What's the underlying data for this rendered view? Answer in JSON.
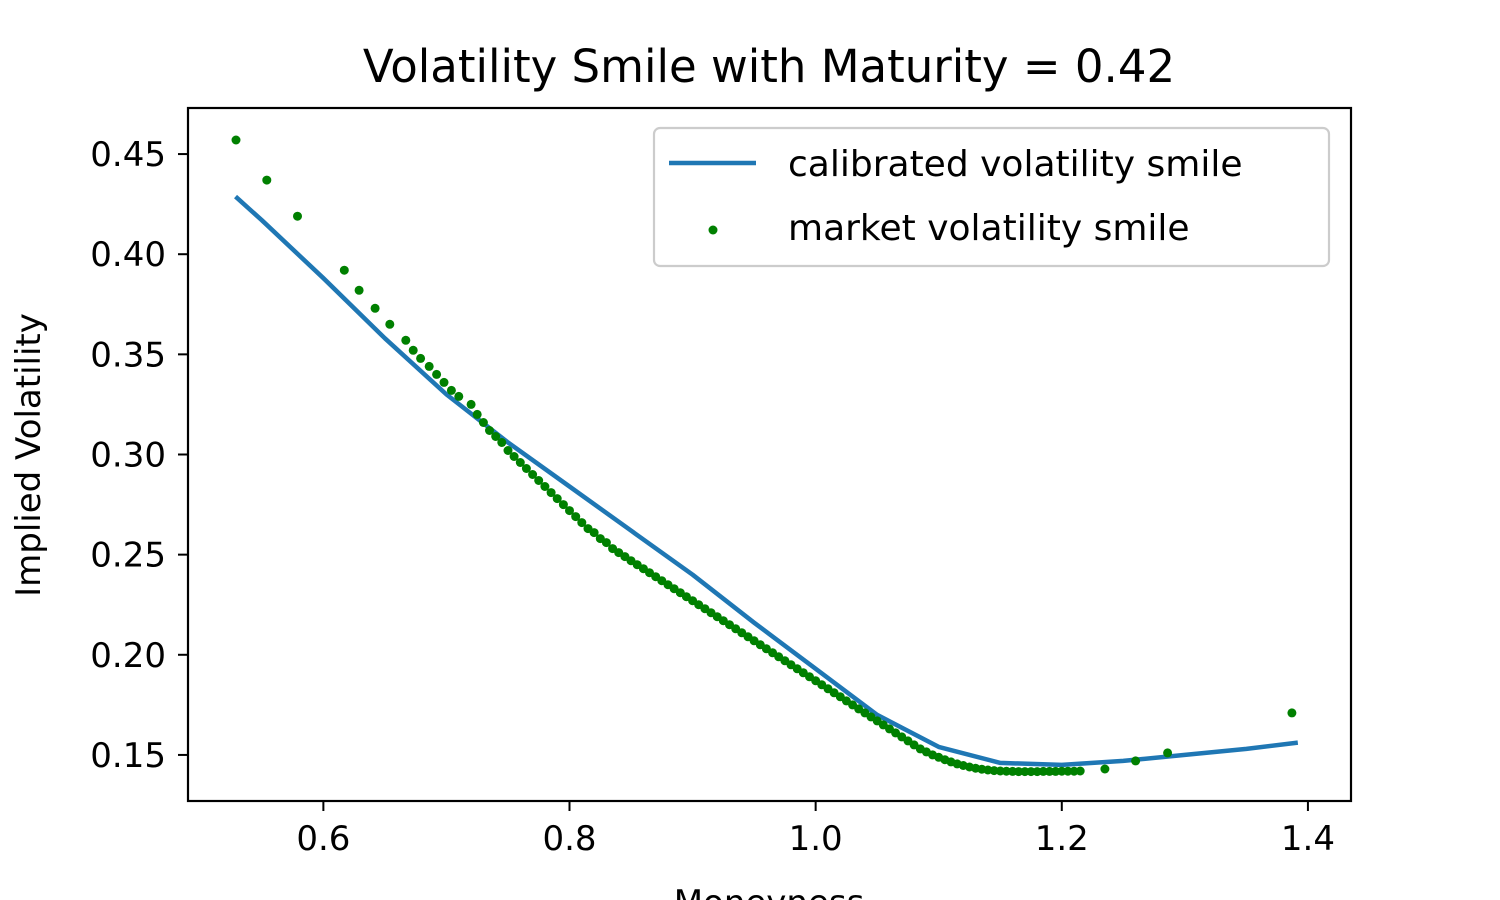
{
  "chart_data": {
    "type": "line+scatter",
    "title": "Volatility Smile with Maturity = 0.42",
    "xlabel": "Moneyness",
    "ylabel": "Implied Volatility",
    "xlim": [
      0.49,
      1.435
    ],
    "ylim": [
      0.127,
      0.473
    ],
    "xticks": [
      0.6,
      0.8,
      1.0,
      1.2,
      1.4
    ],
    "xtick_labels": [
      "0.6",
      "0.8",
      "1.0",
      "1.2",
      "1.4"
    ],
    "yticks": [
      0.15,
      0.2,
      0.25,
      0.3,
      0.35,
      0.4,
      0.45
    ],
    "ytick_labels": [
      "0.15",
      "0.20",
      "0.25",
      "0.30",
      "0.35",
      "0.40",
      "0.45"
    ],
    "legend_position": "top-right",
    "colors": {
      "line": "#1f77b4",
      "points": "#008000",
      "axes": "#000000",
      "legend_border": "#cccccc"
    },
    "series": [
      {
        "name": "calibrated volatility smile",
        "kind": "line",
        "x": [
          0.53,
          0.55,
          0.6,
          0.65,
          0.7,
          0.75,
          0.8,
          0.85,
          0.9,
          0.95,
          1.0,
          1.05,
          1.1,
          1.15,
          1.2,
          1.25,
          1.3,
          1.35,
          1.39
        ],
        "y": [
          0.428,
          0.417,
          0.388,
          0.358,
          0.33,
          0.306,
          0.284,
          0.262,
          0.24,
          0.216,
          0.193,
          0.17,
          0.154,
          0.146,
          0.145,
          0.147,
          0.15,
          0.153,
          0.156
        ]
      },
      {
        "name": "market volatility smile",
        "kind": "scatter",
        "x": [
          0.529,
          0.554,
          0.579,
          0.617,
          0.629,
          0.642,
          0.654,
          0.667,
          0.673,
          0.679,
          0.686,
          0.692,
          0.698,
          0.704,
          0.71,
          0.72,
          0.725,
          0.73,
          0.735,
          0.74,
          0.745,
          0.75,
          0.755,
          0.76,
          0.765,
          0.77,
          0.775,
          0.78,
          0.785,
          0.79,
          0.795,
          0.8,
          0.805,
          0.81,
          0.815,
          0.82,
          0.825,
          0.83,
          0.835,
          0.84,
          0.845,
          0.85,
          0.855,
          0.86,
          0.865,
          0.87,
          0.875,
          0.88,
          0.885,
          0.89,
          0.895,
          0.9,
          0.905,
          0.91,
          0.915,
          0.92,
          0.925,
          0.93,
          0.935,
          0.94,
          0.945,
          0.95,
          0.955,
          0.96,
          0.965,
          0.97,
          0.975,
          0.98,
          0.985,
          0.99,
          0.995,
          1.0,
          1.005,
          1.01,
          1.015,
          1.02,
          1.025,
          1.03,
          1.035,
          1.04,
          1.045,
          1.05,
          1.055,
          1.06,
          1.065,
          1.07,
          1.075,
          1.08,
          1.085,
          1.09,
          1.095,
          1.1,
          1.105,
          1.11,
          1.115,
          1.12,
          1.125,
          1.13,
          1.135,
          1.14,
          1.145,
          1.15,
          1.155,
          1.16,
          1.165,
          1.17,
          1.175,
          1.18,
          1.185,
          1.19,
          1.195,
          1.2,
          1.205,
          1.21,
          1.215,
          1.235,
          1.26,
          1.286,
          1.387
        ],
        "y": [
          0.457,
          0.437,
          0.419,
          0.392,
          0.382,
          0.373,
          0.365,
          0.357,
          0.352,
          0.348,
          0.344,
          0.34,
          0.336,
          0.332,
          0.329,
          0.325,
          0.32,
          0.316,
          0.312,
          0.309,
          0.306,
          0.302,
          0.299,
          0.296,
          0.293,
          0.29,
          0.287,
          0.284,
          0.281,
          0.278,
          0.275,
          0.272,
          0.269,
          0.266,
          0.263,
          0.261,
          0.258,
          0.256,
          0.253,
          0.251,
          0.249,
          0.247,
          0.245,
          0.243,
          0.241,
          0.239,
          0.237,
          0.235,
          0.233,
          0.231,
          0.229,
          0.227,
          0.225,
          0.223,
          0.221,
          0.219,
          0.217,
          0.215,
          0.213,
          0.211,
          0.209,
          0.207,
          0.205,
          0.203,
          0.201,
          0.199,
          0.197,
          0.195,
          0.193,
          0.191,
          0.189,
          0.187,
          0.185,
          0.183,
          0.181,
          0.179,
          0.177,
          0.175,
          0.173,
          0.171,
          0.169,
          0.167,
          0.165,
          0.163,
          0.161,
          0.159,
          0.157,
          0.155,
          0.153,
          0.1515,
          0.15,
          0.1488,
          0.1476,
          0.1465,
          0.1455,
          0.1447,
          0.144,
          0.1434,
          0.1429,
          0.1425,
          0.1422,
          0.142,
          0.1419,
          0.1418,
          0.1417,
          0.1417,
          0.1417,
          0.1417,
          0.1418,
          0.1418,
          0.1418,
          0.1419,
          0.1419,
          0.1419,
          0.142,
          0.143,
          0.147,
          0.151,
          0.171
        ]
      }
    ]
  }
}
